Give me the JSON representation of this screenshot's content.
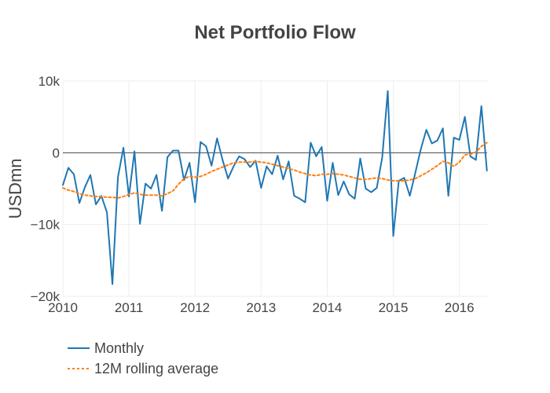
{
  "chart_data": {
    "type": "line",
    "title": "Net Portfolio Flow",
    "ylabel": "USDmn",
    "xlabel": "",
    "xlim": [
      2010.0,
      2016.42
    ],
    "ylim": [
      -20000,
      10000
    ],
    "x_ticks": [
      2010,
      2011,
      2012,
      2013,
      2014,
      2015,
      2016
    ],
    "x_tick_labels": [
      "2010",
      "2011",
      "2012",
      "2013",
      "2014",
      "2015",
      "2016"
    ],
    "y_ticks": [
      -20000,
      -10000,
      0,
      10000
    ],
    "y_tick_labels": [
      "−20k",
      "−10k",
      "0",
      "10k"
    ],
    "grid": true,
    "legend_position": "bottom-left",
    "x_start": 2010.0,
    "x_step": 0.08333,
    "series": [
      {
        "name": "Monthly",
        "color": "#1f77b4",
        "dash": "solid",
        "values": [
          -4500,
          -2100,
          -3000,
          -7000,
          -4800,
          -3100,
          -7200,
          -6000,
          -8300,
          -18300,
          -3400,
          700,
          -6100,
          200,
          -9900,
          -4300,
          -5000,
          -3100,
          -8100,
          -600,
          300,
          300,
          -3800,
          -1400,
          -6900,
          1500,
          900,
          -1800,
          2000,
          -1000,
          -3600,
          -1900,
          -500,
          -900,
          -2000,
          -1100,
          -4900,
          -1900,
          -3000,
          -400,
          -3700,
          -1200,
          -6000,
          -6400,
          -6900,
          1400,
          -500,
          800,
          -6700,
          -1400,
          -5900,
          -4000,
          -5800,
          -6400,
          -800,
          -5000,
          -5500,
          -4900,
          -600,
          8600,
          -11600,
          -3900,
          -3500,
          -6000,
          -2800,
          500,
          3200,
          1300,
          1700,
          3400,
          -6000,
          2100,
          1800,
          5000,
          -500,
          -1000,
          6500,
          -2500
        ]
      },
      {
        "name": "12M rolling average",
        "color": "#ff7f0e",
        "dash": "dotted",
        "values": [
          -4900,
          -5200,
          -5400,
          -5700,
          -5900,
          -6000,
          -6100,
          -6100,
          -6200,
          -6200,
          -6300,
          -6100,
          -5800,
          -5600,
          -5800,
          -5900,
          -5900,
          -5900,
          -6000,
          -5700,
          -5300,
          -4400,
          -3600,
          -3300,
          -3400,
          -3300,
          -3000,
          -2600,
          -2300,
          -2000,
          -1700,
          -1400,
          -1300,
          -1300,
          -1300,
          -1200,
          -1300,
          -1400,
          -1600,
          -1800,
          -2000,
          -2200,
          -2400,
          -2700,
          -2900,
          -3100,
          -3200,
          -3000,
          -3000,
          -2900,
          -3000,
          -3100,
          -3300,
          -3500,
          -3700,
          -3700,
          -3600,
          -3500,
          -3600,
          -3800,
          -3900,
          -3900,
          -3900,
          -3800,
          -3600,
          -3200,
          -2800,
          -2300,
          -1800,
          -1200,
          -1400,
          -1900,
          -1300,
          -300,
          -200,
          100,
          900,
          1400
        ]
      }
    ]
  }
}
